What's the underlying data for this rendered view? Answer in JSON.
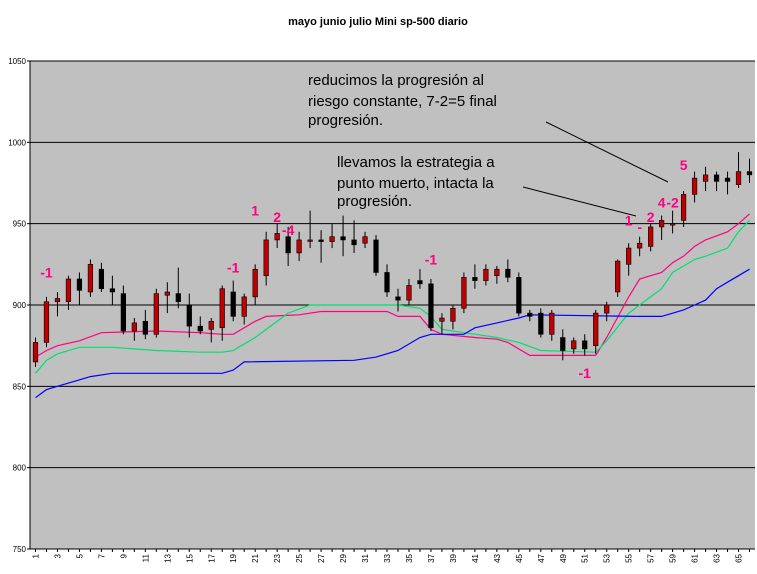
{
  "chart_data": {
    "type": "candlestick",
    "title": "mayo junio julio Mini sp-500 diario",
    "xlabel": "",
    "ylabel": "",
    "ylim": [
      750,
      1050
    ],
    "yticks": [
      "1050",
      "1000",
      "950",
      "900",
      "850",
      "800",
      "750"
    ],
    "ytick_values": [
      1050,
      1000,
      950,
      900,
      850,
      800,
      750
    ],
    "xticks": [
      "1",
      "3",
      "5",
      "7",
      "9",
      "11",
      "13",
      "15",
      "17",
      "19",
      "21",
      "23",
      "25",
      "27",
      "29",
      "31",
      "33",
      "35",
      "37",
      "39",
      "41",
      "43",
      "45",
      "47",
      "49",
      "51",
      "53",
      "55",
      "57",
      "59",
      "61",
      "63",
      "65"
    ],
    "grid": "horizontal",
    "colors": {
      "plot_background": "#c0c0c0",
      "up_candle": "#c00000",
      "down_candle": "#000000",
      "upper_band": "#ff0080",
      "middle_band": "#00e070",
      "lower_band": "#0000ff",
      "marker_text": "#ff0080"
    },
    "candles": [
      {
        "x": 1,
        "open": 865,
        "high": 880,
        "low": 862,
        "close": 877
      },
      {
        "x": 2,
        "open": 877,
        "high": 905,
        "low": 874,
        "close": 902
      },
      {
        "x": 3,
        "open": 902,
        "high": 908,
        "low": 893,
        "close": 904
      },
      {
        "x": 4,
        "open": 902,
        "high": 918,
        "low": 897,
        "close": 916
      },
      {
        "x": 5,
        "open": 916,
        "high": 920,
        "low": 900,
        "close": 909
      },
      {
        "x": 6,
        "open": 908,
        "high": 928,
        "low": 905,
        "close": 925
      },
      {
        "x": 7,
        "open": 922,
        "high": 926,
        "low": 908,
        "close": 910
      },
      {
        "x": 8,
        "open": 910,
        "high": 918,
        "low": 900,
        "close": 908
      },
      {
        "x": 9,
        "open": 907,
        "high": 912,
        "low": 882,
        "close": 884
      },
      {
        "x": 10,
        "open": 884,
        "high": 892,
        "low": 878,
        "close": 889
      },
      {
        "x": 11,
        "open": 890,
        "high": 897,
        "low": 879,
        "close": 882
      },
      {
        "x": 12,
        "open": 882,
        "high": 910,
        "low": 880,
        "close": 907
      },
      {
        "x": 13,
        "open": 906,
        "high": 914,
        "low": 895,
        "close": 908
      },
      {
        "x": 14,
        "open": 907,
        "high": 923,
        "low": 898,
        "close": 902
      },
      {
        "x": 15,
        "open": 900,
        "high": 907,
        "low": 880,
        "close": 887
      },
      {
        "x": 16,
        "open": 887,
        "high": 893,
        "low": 882,
        "close": 884
      },
      {
        "x": 17,
        "open": 885,
        "high": 892,
        "low": 877,
        "close": 890
      },
      {
        "x": 18,
        "open": 886,
        "high": 912,
        "low": 878,
        "close": 910
      },
      {
        "x": 19,
        "open": 908,
        "high": 915,
        "low": 890,
        "close": 893
      },
      {
        "x": 20,
        "open": 893,
        "high": 907,
        "low": 888,
        "close": 905
      },
      {
        "x": 21,
        "open": 905,
        "high": 925,
        "low": 900,
        "close": 922
      },
      {
        "x": 22,
        "open": 918,
        "high": 945,
        "low": 912,
        "close": 940
      },
      {
        "x": 23,
        "open": 940,
        "high": 950,
        "low": 935,
        "close": 944
      },
      {
        "x": 24,
        "open": 942,
        "high": 948,
        "low": 924,
        "close": 932
      },
      {
        "x": 25,
        "open": 932,
        "high": 945,
        "low": 927,
        "close": 940
      },
      {
        "x": 26,
        "open": 940,
        "high": 958,
        "low": 935,
        "close": 940
      },
      {
        "x": 27,
        "open": 940,
        "high": 946,
        "low": 926,
        "close": 939
      },
      {
        "x": 28,
        "open": 939,
        "high": 950,
        "low": 935,
        "close": 942
      },
      {
        "x": 29,
        "open": 942,
        "high": 955,
        "low": 930,
        "close": 940
      },
      {
        "x": 30,
        "open": 940,
        "high": 952,
        "low": 932,
        "close": 937
      },
      {
        "x": 31,
        "open": 938,
        "high": 945,
        "low": 935,
        "close": 942
      },
      {
        "x": 32,
        "open": 940,
        "high": 943,
        "low": 918,
        "close": 920
      },
      {
        "x": 33,
        "open": 920,
        "high": 925,
        "low": 905,
        "close": 908
      },
      {
        "x": 34,
        "open": 905,
        "high": 910,
        "low": 896,
        "close": 903
      },
      {
        "x": 35,
        "open": 903,
        "high": 916,
        "low": 900,
        "close": 912
      },
      {
        "x": 36,
        "open": 915,
        "high": 922,
        "low": 910,
        "close": 913
      },
      {
        "x": 37,
        "open": 913,
        "high": 916,
        "low": 884,
        "close": 886
      },
      {
        "x": 38,
        "open": 890,
        "high": 895,
        "low": 882,
        "close": 892
      },
      {
        "x": 39,
        "open": 890,
        "high": 900,
        "low": 885,
        "close": 898
      },
      {
        "x": 40,
        "open": 898,
        "high": 920,
        "low": 895,
        "close": 917
      },
      {
        "x": 41,
        "open": 917,
        "high": 925,
        "low": 910,
        "close": 915
      },
      {
        "x": 42,
        "open": 915,
        "high": 925,
        "low": 912,
        "close": 922
      },
      {
        "x": 43,
        "open": 918,
        "high": 924,
        "low": 913,
        "close": 922
      },
      {
        "x": 44,
        "open": 922,
        "high": 928,
        "low": 914,
        "close": 917
      },
      {
        "x": 45,
        "open": 917,
        "high": 920,
        "low": 893,
        "close": 895
      },
      {
        "x": 46,
        "open": 895,
        "high": 897,
        "low": 890,
        "close": 893
      },
      {
        "x": 47,
        "open": 895,
        "high": 898,
        "low": 880,
        "close": 882
      },
      {
        "x": 48,
        "open": 882,
        "high": 897,
        "low": 878,
        "close": 895
      },
      {
        "x": 49,
        "open": 880,
        "high": 885,
        "low": 866,
        "close": 872
      },
      {
        "x": 50,
        "open": 873,
        "high": 880,
        "low": 870,
        "close": 878
      },
      {
        "x": 51,
        "open": 878,
        "high": 882,
        "low": 869,
        "close": 873
      },
      {
        "x": 52,
        "open": 875,
        "high": 897,
        "low": 870,
        "close": 895
      },
      {
        "x": 53,
        "open": 895,
        "high": 902,
        "low": 890,
        "close": 900
      },
      {
        "x": 54,
        "open": 908,
        "high": 928,
        "low": 905,
        "close": 927
      },
      {
        "x": 55,
        "open": 925,
        "high": 938,
        "low": 918,
        "close": 935
      },
      {
        "x": 56,
        "open": 935,
        "high": 942,
        "low": 930,
        "close": 938
      },
      {
        "x": 57,
        "open": 936,
        "high": 950,
        "low": 933,
        "close": 948
      },
      {
        "x": 58,
        "open": 948,
        "high": 955,
        "low": 940,
        "close": 952
      },
      {
        "x": 59,
        "open": 950,
        "high": 958,
        "low": 944,
        "close": 950
      },
      {
        "x": 60,
        "open": 952,
        "high": 970,
        "low": 948,
        "close": 968
      },
      {
        "x": 61,
        "open": 968,
        "high": 982,
        "low": 963,
        "close": 978
      },
      {
        "x": 62,
        "open": 976,
        "high": 985,
        "low": 970,
        "close": 980
      },
      {
        "x": 63,
        "open": 980,
        "high": 982,
        "low": 970,
        "close": 976
      },
      {
        "x": 64,
        "open": 978,
        "high": 982,
        "low": 968,
        "close": 976
      },
      {
        "x": 65,
        "open": 974,
        "high": 994,
        "low": 972,
        "close": 982
      },
      {
        "x": 66,
        "open": 982,
        "high": 990,
        "low": 975,
        "close": 980
      }
    ],
    "series": [
      {
        "values": [
          [
            1,
            868
          ],
          [
            2,
            872
          ],
          [
            3,
            875
          ],
          [
            5,
            878
          ],
          [
            7,
            883
          ],
          [
            12,
            884
          ],
          [
            16,
            883
          ],
          [
            18,
            882
          ],
          [
            19,
            882
          ],
          [
            21,
            890
          ],
          [
            22,
            893
          ],
          [
            25,
            894
          ],
          [
            27,
            896
          ],
          [
            33,
            896
          ],
          [
            34,
            893
          ],
          [
            36,
            893
          ],
          [
            37,
            885
          ],
          [
            38,
            882
          ],
          [
            41,
            880
          ],
          [
            43,
            879
          ],
          [
            44,
            877
          ],
          [
            46,
            869
          ],
          [
            52,
            869
          ],
          [
            53,
            880
          ],
          [
            55,
            905
          ],
          [
            56,
            916
          ],
          [
            57,
            918
          ],
          [
            58,
            920
          ],
          [
            59,
            926
          ],
          [
            60,
            930
          ],
          [
            61,
            936
          ],
          [
            62,
            940
          ],
          [
            64,
            945
          ],
          [
            65,
            950
          ],
          [
            66,
            956
          ]
        ]
      },
      {
        "values": [
          [
            1,
            858
          ],
          [
            2,
            866
          ],
          [
            3,
            870
          ],
          [
            5,
            874
          ],
          [
            8,
            874
          ],
          [
            12,
            872
          ],
          [
            16,
            871
          ],
          [
            18,
            871
          ],
          [
            19,
            872
          ],
          [
            21,
            880
          ],
          [
            22,
            885
          ],
          [
            24,
            895
          ],
          [
            26,
            900
          ],
          [
            34,
            900
          ],
          [
            36,
            898
          ],
          [
            37,
            893
          ],
          [
            38,
            885
          ],
          [
            40,
            883
          ],
          [
            43,
            880
          ],
          [
            45,
            877
          ],
          [
            47,
            872
          ],
          [
            52,
            871
          ],
          [
            53,
            878
          ],
          [
            55,
            895
          ],
          [
            57,
            905
          ],
          [
            58,
            910
          ],
          [
            59,
            920
          ],
          [
            60,
            924
          ],
          [
            61,
            928
          ],
          [
            62,
            930
          ],
          [
            64,
            935
          ],
          [
            65,
            945
          ],
          [
            66,
            952
          ]
        ]
      },
      {
        "values": [
          [
            1,
            843
          ],
          [
            2,
            848
          ],
          [
            4,
            852
          ],
          [
            6,
            856
          ],
          [
            8,
            858
          ],
          [
            18,
            858
          ],
          [
            19,
            860
          ],
          [
            20,
            865
          ],
          [
            30,
            866
          ],
          [
            32,
            868
          ],
          [
            34,
            872
          ],
          [
            36,
            880
          ],
          [
            37,
            882
          ],
          [
            40,
            882
          ],
          [
            41,
            886
          ],
          [
            43,
            889
          ],
          [
            45,
            892
          ],
          [
            46,
            894
          ],
          [
            56,
            893
          ],
          [
            58,
            893
          ],
          [
            60,
            897
          ],
          [
            61,
            900
          ],
          [
            62,
            903
          ],
          [
            63,
            910
          ],
          [
            64,
            914
          ],
          [
            65,
            918
          ],
          [
            66,
            922
          ]
        ]
      }
    ],
    "markers": [
      {
        "text": "-1",
        "x": 2,
        "y": 917
      },
      {
        "text": "-1",
        "x": 19,
        "y": 920
      },
      {
        "text": "1",
        "x": 21,
        "y": 955
      },
      {
        "text": "2",
        "x": 23,
        "y": 951
      },
      {
        "text": "-4",
        "x": 24,
        "y": 943
      },
      {
        "text": "-1",
        "x": 37,
        "y": 925
      },
      {
        "text": "-1",
        "x": 51,
        "y": 855
      },
      {
        "text": "1",
        "x": 55,
        "y": 949
      },
      {
        "text": "2",
        "x": 57,
        "y": 951
      },
      {
        "text": "-",
        "x": 56,
        "y": 945
      },
      {
        "text": "4",
        "x": 58,
        "y": 960
      },
      {
        "text": "-2",
        "x": 59,
        "y": 960
      },
      {
        "text": "5",
        "x": 60,
        "y": 983
      }
    ],
    "annotations": [
      {
        "lines": [
          "reducimos la progresión al",
          "riesgo constante, 7-2=5 final",
          "progresión."
        ]
      },
      {
        "lines": [
          "llevamos la estrategia a",
          "punto muerto, intacta la",
          "progresión."
        ]
      }
    ]
  }
}
